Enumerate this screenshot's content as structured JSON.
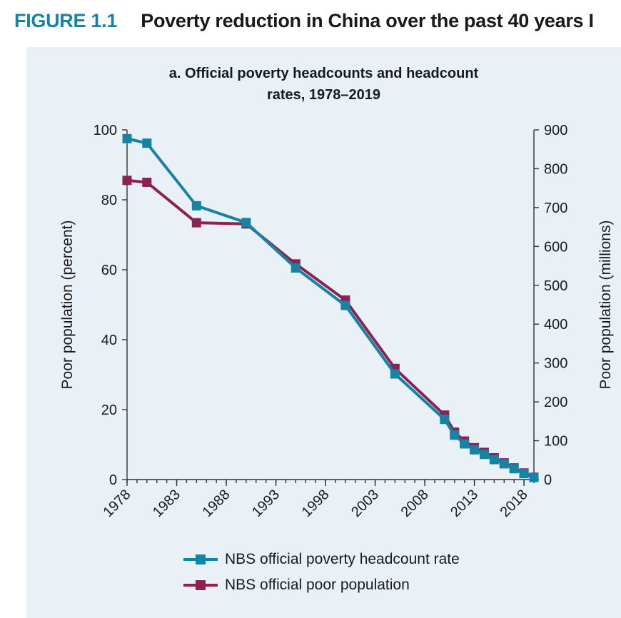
{
  "figure": {
    "label": "FIGURE 1.1",
    "title": "Poverty reduction in China over the past 40 years I"
  },
  "colors": {
    "rate": "#1584a4",
    "population": "#8b2252",
    "panel_bg": "#e9f0f6"
  },
  "chart_data": {
    "type": "line",
    "title_line1": "a. Official poverty headcounts and headcount",
    "title_line2": "rates, 1978–2019",
    "xlabel": "",
    "ylabel_left": "Poor population (percent)",
    "ylabel_right": "Poor population (millions)",
    "xlim": [
      1978,
      2019
    ],
    "ylim_left": [
      0,
      100
    ],
    "ylim_right": [
      0,
      900
    ],
    "x_ticks": [
      "1978",
      "1983",
      "1988",
      "1993",
      "1998",
      "2003",
      "2008",
      "2013",
      "2018"
    ],
    "y_ticks_left": [
      "0",
      "20",
      "40",
      "60",
      "80",
      "100"
    ],
    "y_ticks_right": [
      "0",
      "100",
      "200",
      "300",
      "400",
      "500",
      "600",
      "700",
      "800",
      "900"
    ],
    "grid": false,
    "legend_position": "bottom",
    "series": [
      {
        "name": "NBS official poverty headcount rate",
        "axis": "left",
        "x": [
          1978,
          1980,
          1985,
          1990,
          1995,
          2000,
          2005,
          2010,
          2011,
          2012,
          2013,
          2014,
          2015,
          2016,
          2017,
          2018,
          2019
        ],
        "y": [
          97.5,
          96.2,
          78.3,
          73.5,
          60.5,
          49.8,
          30.2,
          17.2,
          12.7,
          10.2,
          8.5,
          7.2,
          5.7,
          4.5,
          3.1,
          1.7,
          0.6
        ]
      },
      {
        "name": "NBS official poor population",
        "axis": "right",
        "x": [
          1978,
          1980,
          1985,
          1990,
          1995,
          2000,
          2005,
          2010,
          2011,
          2012,
          2013,
          2014,
          2015,
          2016,
          2017,
          2018,
          2019
        ],
        "y": [
          770,
          765,
          661,
          658,
          555,
          462,
          286,
          166,
          122,
          99,
          82,
          70,
          56,
          43,
          30,
          17,
          6
        ]
      }
    ]
  }
}
